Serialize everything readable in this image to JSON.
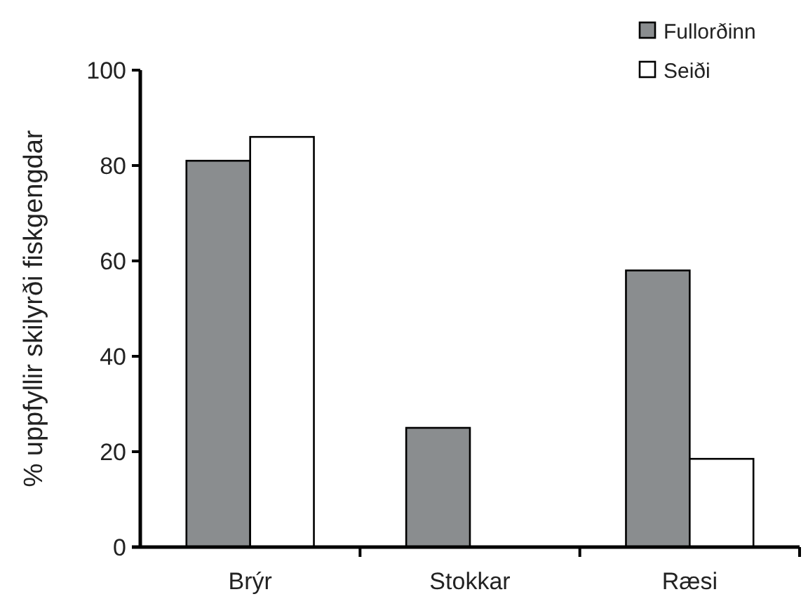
{
  "chart_data": {
    "type": "bar",
    "ylabel": "% uppfyllir skilyrði fiskgengdar",
    "categories": [
      "Brýr",
      "Stokkar",
      "Ræsi"
    ],
    "series": [
      {
        "name": "Fullorðinn",
        "color": "#8a8d8f",
        "values": [
          81,
          25,
          58
        ]
      },
      {
        "name": "Seiði",
        "color": "#ffffff",
        "values": [
          86,
          0,
          18.5
        ]
      }
    ],
    "ylim": [
      0,
      100
    ],
    "yticks": [
      0,
      20,
      40,
      60,
      80,
      100
    ],
    "grid": false,
    "legend": "top right"
  }
}
